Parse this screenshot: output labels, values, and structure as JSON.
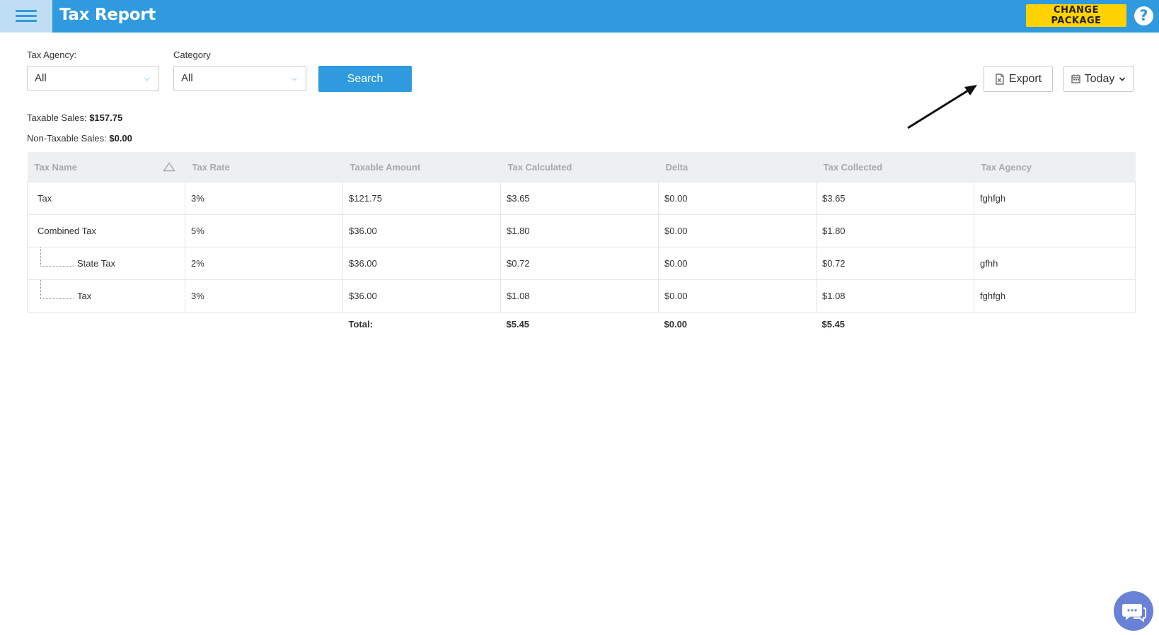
{
  "header": {
    "title": "Tax Report",
    "change_package_label": "CHANGE PACKAGE",
    "help_label": "?"
  },
  "filters": {
    "tax_agency_label": "Tax Agency:",
    "tax_agency_value": "All",
    "category_label": "Category",
    "category_value": "All",
    "search_label": "Search"
  },
  "actions": {
    "export_label": "Export",
    "date_label": "Today"
  },
  "summary": {
    "taxable_label": "Taxable Sales:",
    "taxable_value": "$157.75",
    "nontaxable_label": "Non-Taxable Sales:",
    "nontaxable_value": "$0.00"
  },
  "table": {
    "columns": [
      "Tax Name",
      "Tax Rate",
      "Taxable Amount",
      "Tax Calculated",
      "Delta",
      "Tax Collected",
      "Tax Agency"
    ],
    "rows": [
      {
        "name": "Tax",
        "rate": "3%",
        "taxable": "$121.75",
        "calculated": "$3.65",
        "delta": "$0.00",
        "collected": "$3.65",
        "agency": "fghfgh",
        "child": false
      },
      {
        "name": "Combined Tax",
        "rate": "5%",
        "taxable": "$36.00",
        "calculated": "$1.80",
        "delta": "$0.00",
        "collected": "$1.80",
        "agency": "",
        "child": false
      },
      {
        "name": "State Tax",
        "rate": "2%",
        "taxable": "$36.00",
        "calculated": "$0.72",
        "delta": "$0.00",
        "collected": "$0.72",
        "agency": "gfhh",
        "child": true
      },
      {
        "name": "Tax",
        "rate": "3%",
        "taxable": "$36.00",
        "calculated": "$1.08",
        "delta": "$0.00",
        "collected": "$1.08",
        "agency": "fghfgh",
        "child": true
      }
    ],
    "total": {
      "label": "Total:",
      "calculated": "$5.45",
      "delta": "$0.00",
      "collected": "$5.45"
    }
  },
  "colors": {
    "primary": "#2f9ade",
    "accent": "#ffd200",
    "chat": "#6a82d6"
  }
}
